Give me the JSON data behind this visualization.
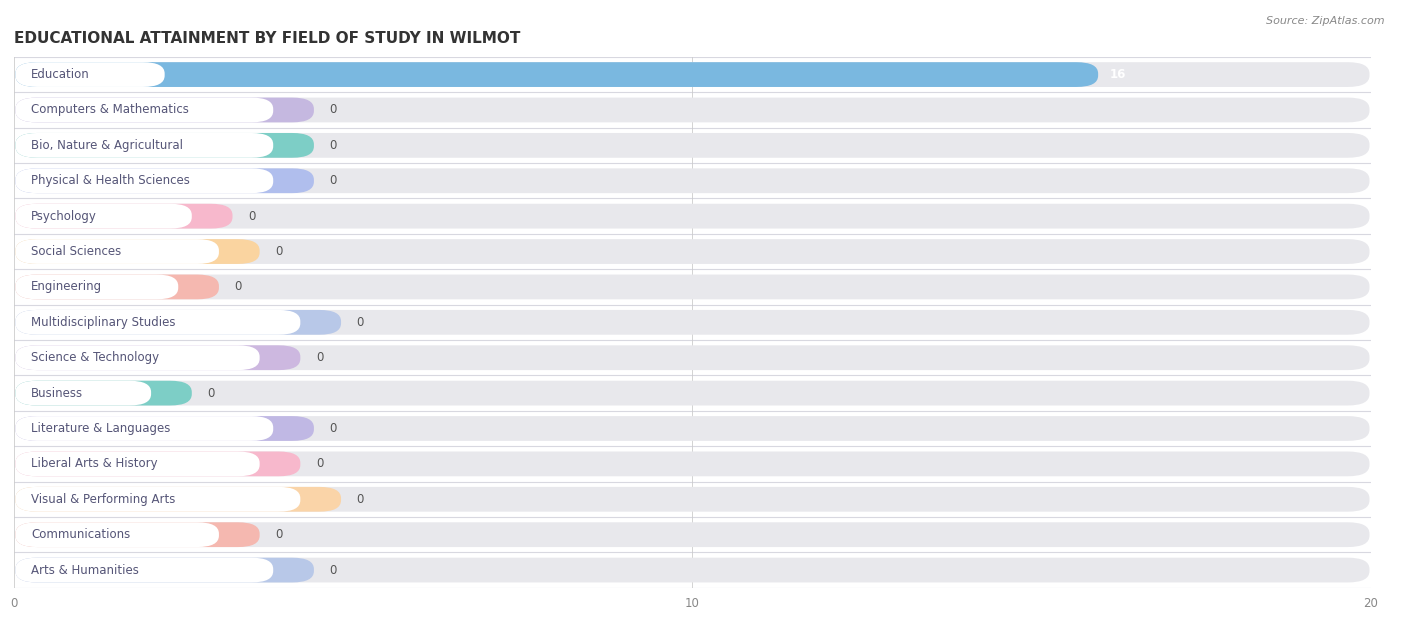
{
  "title": "EDUCATIONAL ATTAINMENT BY FIELD OF STUDY IN WILMOT",
  "source": "Source: ZipAtlas.com",
  "categories": [
    "Education",
    "Computers & Mathematics",
    "Bio, Nature & Agricultural",
    "Physical & Health Sciences",
    "Psychology",
    "Social Sciences",
    "Engineering",
    "Multidisciplinary Studies",
    "Science & Technology",
    "Business",
    "Literature & Languages",
    "Liberal Arts & History",
    "Visual & Performing Arts",
    "Communications",
    "Arts & Humanities"
  ],
  "values": [
    16,
    0,
    0,
    0,
    0,
    0,
    0,
    0,
    0,
    0,
    0,
    0,
    0,
    0,
    0
  ],
  "bar_colors": [
    "#7ab8e0",
    "#c5b8e0",
    "#7dcec6",
    "#b0beed",
    "#f7b8cc",
    "#fad4a0",
    "#f5b8b0",
    "#b8c8e8",
    "#cdb8e0",
    "#7dcec6",
    "#c0b8e4",
    "#f7b8cc",
    "#fad4a8",
    "#f5b8b0",
    "#b8c8e8"
  ],
  "pill_widths": [
    0,
    4.4,
    4.4,
    4.4,
    3.2,
    3.6,
    3.0,
    4.8,
    4.2,
    2.6,
    4.4,
    4.2,
    4.8,
    3.6,
    4.4
  ],
  "xlim": [
    0,
    20
  ],
  "xticks": [
    0,
    10,
    20
  ],
  "row_bg_color": "#ffffff",
  "bar_bg_color": "#e8e8ec",
  "separator_color": "#d8d8e0",
  "title_fontsize": 11,
  "label_fontsize": 8.5,
  "value_fontsize": 8.5,
  "value_label_color": "#555555",
  "label_text_color": "#555577"
}
